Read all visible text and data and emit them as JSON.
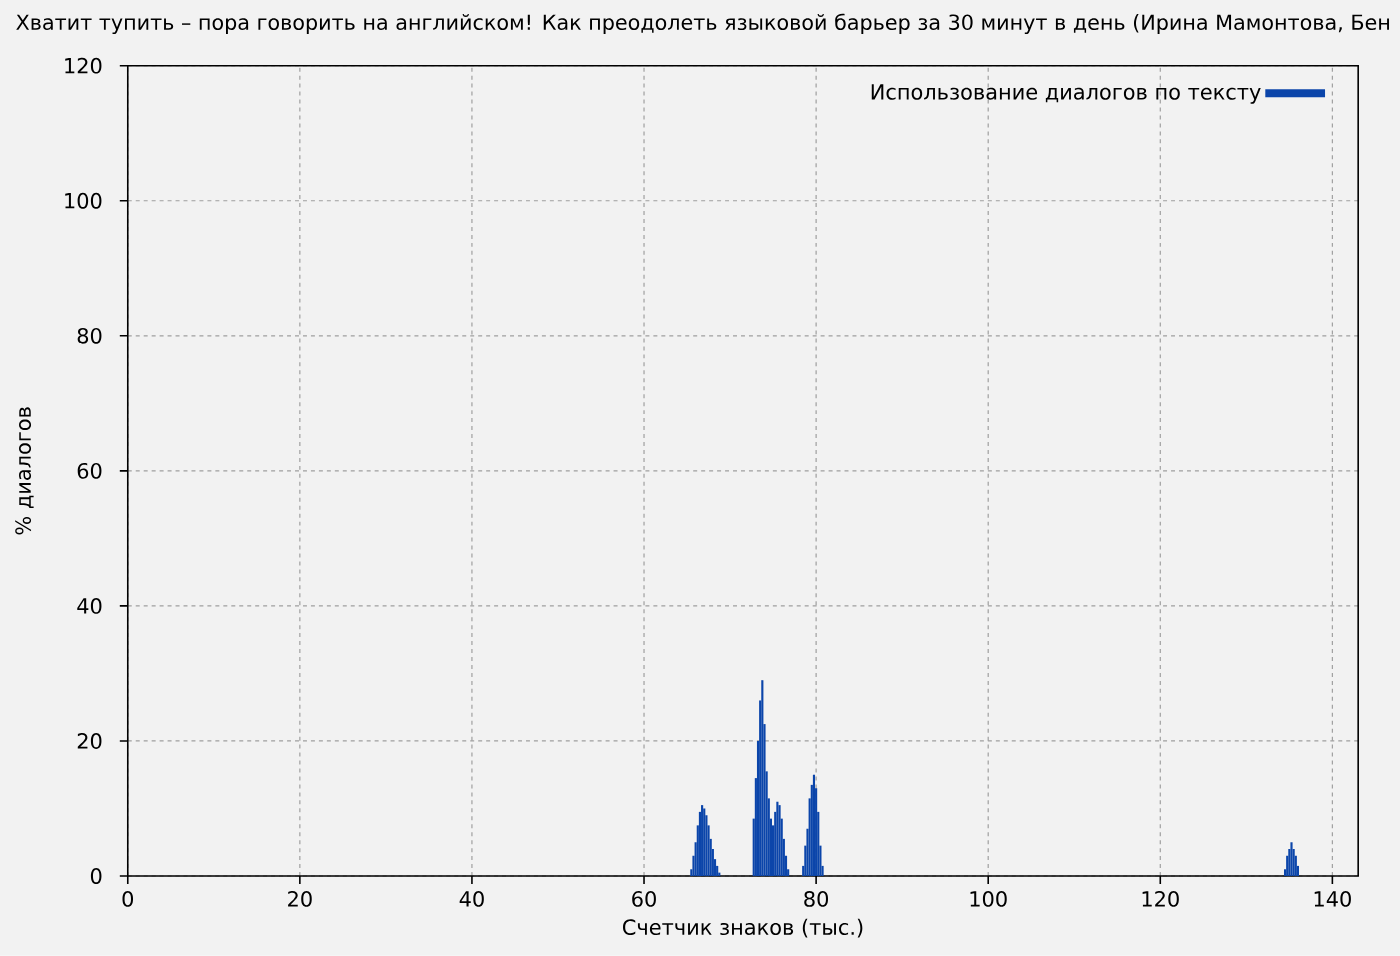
{
  "chart_data": {
    "type": "bar",
    "title": "Хватит тупить – пора говорить на английском! Как преодолеть языковой барьер за 30 минут в день (Ирина Мамонтова, Бен",
    "xlabel": "Счетчик знаков (тыс.)",
    "ylabel": "% диалогов",
    "x": [
      65.5,
      65.75,
      66,
      66.25,
      66.5,
      66.75,
      67,
      67.25,
      67.5,
      67.75,
      68,
      68.25,
      68.5,
      68.75,
      72.75,
      73,
      73.25,
      73.5,
      73.75,
      74,
      74.25,
      74.5,
      74.75,
      75,
      75.25,
      75.5,
      75.75,
      76,
      76.25,
      76.5,
      76.75,
      78.5,
      78.75,
      79,
      79.25,
      79.5,
      79.75,
      80,
      80.25,
      80.5,
      80.75,
      134.5,
      134.75,
      135,
      135.25,
      135.5,
      135.75,
      136
    ],
    "series": [
      {
        "name": "Использование диалогов по тексту",
        "color": "#0b45aa",
        "values": [
          1,
          3,
          5,
          7.5,
          9.5,
          10.5,
          10,
          9,
          7.5,
          5.5,
          4,
          2.5,
          1.5,
          0.5,
          8.5,
          14.5,
          20,
          26,
          29,
          22.5,
          15.5,
          11.5,
          8.5,
          7.5,
          9.5,
          11,
          10.5,
          8.5,
          5.5,
          3,
          1,
          1.5,
          4.5,
          7,
          11.5,
          13.5,
          15,
          13,
          9.5,
          4.5,
          1.5,
          1,
          3,
          4,
          5,
          4,
          3,
          1.5
        ]
      }
    ],
    "xlim": [
      0,
      143
    ],
    "ylim": [
      0,
      120
    ],
    "xticks": [
      0,
      20,
      40,
      60,
      80,
      100,
      120,
      140
    ],
    "yticks": [
      0,
      20,
      40,
      60,
      80,
      100,
      120
    ],
    "grid": true,
    "legend": "top right"
  }
}
